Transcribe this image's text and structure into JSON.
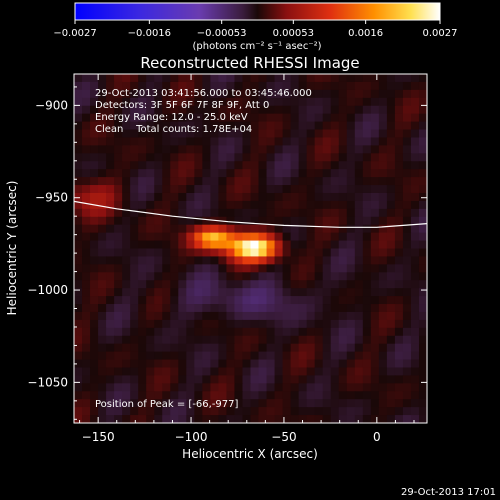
{
  "chart_data": {
    "type": "heatmap",
    "title": "Reconstructed RHESSI Image",
    "xlabel": "Heliocentric X (arcsec)",
    "ylabel": "Heliocentric Y (arcsec)",
    "xlim": [
      -163,
      27
    ],
    "ylim": [
      -1072,
      -883
    ],
    "x_ticks": [
      -150,
      -100,
      -50,
      0
    ],
    "x_tick_labels": [
      "−150",
      "−100",
      "−50",
      "0"
    ],
    "y_ticks": [
      -900,
      -950,
      -1000,
      -1050
    ],
    "y_tick_labels": [
      "−900",
      "−950",
      "−1000",
      "−1050"
    ],
    "colorbar": {
      "range": [
        -0.0027,
        0.0027
      ],
      "ticks": [
        -0.0027,
        -0.0016,
        -0.00053,
        0.00053,
        0.0016,
        0.0027
      ],
      "tick_labels": [
        "−0.0027",
        "−0.0016",
        "−0.00053",
        "0.00053",
        "0.0016",
        "0.0027"
      ],
      "units": "(photons cm⁻² s⁻¹ asec⁻²)"
    },
    "annotations": [
      "29-Oct-2013 03:41:56.000 to 03:45:46.000",
      "Detectors: 3F 5F 6F 7F 8F 9F, Att 0",
      "Energy Range: 12.0 - 25.0 keV",
      "Clean    Total counts: 1.78E+04"
    ],
    "peak_label": "Position of Peak = [-66,-977]",
    "peak": {
      "x": -66,
      "y": -977
    },
    "limb_curve": {
      "x": [
        -163,
        -140,
        -110,
        -80,
        -50,
        -20,
        0,
        27
      ],
      "y": [
        -952,
        -956,
        -960,
        -963,
        -965,
        -966,
        -966,
        -964
      ]
    },
    "grid": false
  },
  "footer": {
    "timestamp": "29-Oct-2013 17:01"
  },
  "colors": {
    "limb": "#ffffff",
    "background": "#000000"
  }
}
